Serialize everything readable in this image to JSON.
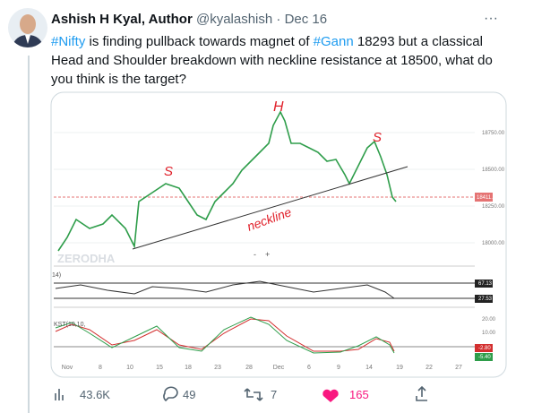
{
  "tweet": {
    "author": "Ashish H Kyal, Author",
    "handle": "@kyalashish",
    "separator": "·",
    "date": "Dec 16",
    "text": [
      {
        "t": "#Nifty",
        "tag": true
      },
      {
        "t": " is finding pullback towards magnet of ",
        "tag": false
      },
      {
        "t": "#Gann",
        "tag": true
      },
      {
        "t": " 18293 but a classical Head and Shoulder breakdown with neckline resistance at 18500, what do you think is the target?",
        "tag": false
      }
    ]
  },
  "image": {
    "annotations": [
      "H",
      "S",
      "S",
      "neckline"
    ],
    "watermark": "ZERODHA",
    "price_axis": [
      "18750.00",
      "18500.00",
      "18250.00",
      "18000.00"
    ],
    "last_price": "18411.00",
    "osc1_title": "14)",
    "osc1_labels": [
      "67.13",
      "27.53"
    ],
    "osc2_title": "KST(10,10,",
    "osc2_axis": [
      "20.00",
      "10.00"
    ],
    "osc2_labels": [
      "-2.80",
      "-5.40"
    ],
    "zoom": [
      "-",
      "+"
    ],
    "x_axis": [
      "Nov",
      "8",
      "10",
      "15",
      "18",
      "23",
      "28",
      "Dec",
      "6",
      "9",
      "14",
      "19",
      "22",
      "27"
    ]
  },
  "actions": {
    "views": "43.6K",
    "replies": "49",
    "retweets": "7",
    "likes": "165"
  }
}
